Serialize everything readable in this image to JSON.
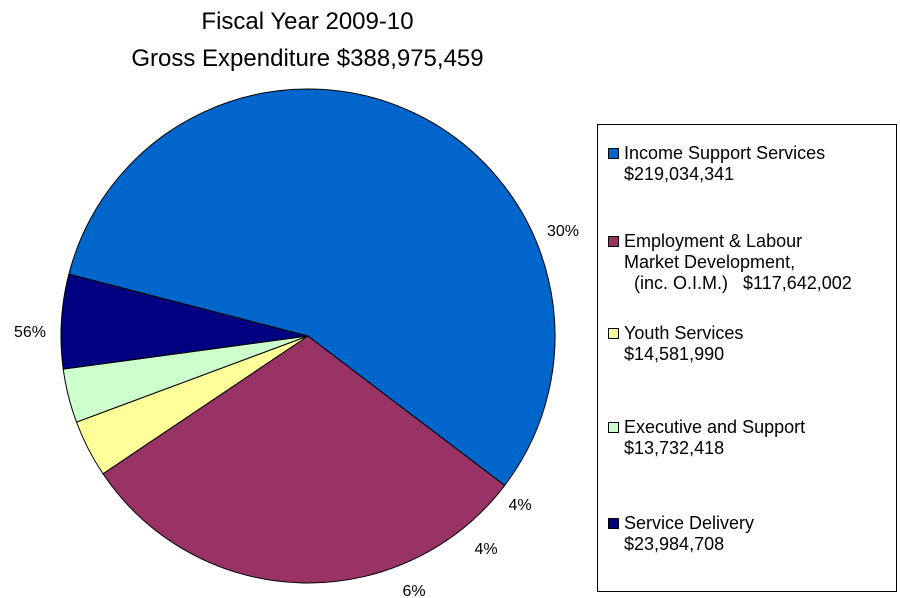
{
  "chart_data": {
    "type": "pie",
    "title": "Fiscal Year 2009-10",
    "subtitle": "Gross Expenditure $388,975,459",
    "legend_position": "right",
    "slices": [
      {
        "name": "Income Support Services",
        "amount_label": "$219,034,341",
        "value": 219034341,
        "percent_label": "56%",
        "color": "#0066CC"
      },
      {
        "name": "Employment & Labour Market Development, (inc. O.I.M.)",
        "amount_label": "$117,642,002",
        "value": 117642002,
        "percent_label": "30%",
        "color": "#993366"
      },
      {
        "name": "Youth Services",
        "amount_label": "$14,581,990",
        "value": 14581990,
        "percent_label": "4%",
        "color": "#FFFF99"
      },
      {
        "name": "Executive and Support",
        "amount_label": "$13,732,418",
        "value": 13732418,
        "percent_label": "4%",
        "color": "#CCFFCC"
      },
      {
        "name": "Service Delivery",
        "amount_label": "$23,984,708",
        "value": 23984708,
        "percent_label": "6%",
        "color": "#000080"
      }
    ],
    "draw_order": [
      1,
      2,
      3,
      4,
      0
    ]
  },
  "legend": {
    "items": [
      {
        "line1": "Income Support Services",
        "line2": "$219,034,341"
      },
      {
        "line1": "Employment & Labour",
        "line2": "Market Development,",
        "line3": "(inc. O.I.M.)   $117,642,002"
      },
      {
        "line1": "Youth Services",
        "line2": "$14,581,990"
      },
      {
        "line1": "Executive and Support",
        "line2": "$13,732,418"
      },
      {
        "line1": "Service Delivery",
        "line2": "$23,984,708"
      }
    ]
  }
}
